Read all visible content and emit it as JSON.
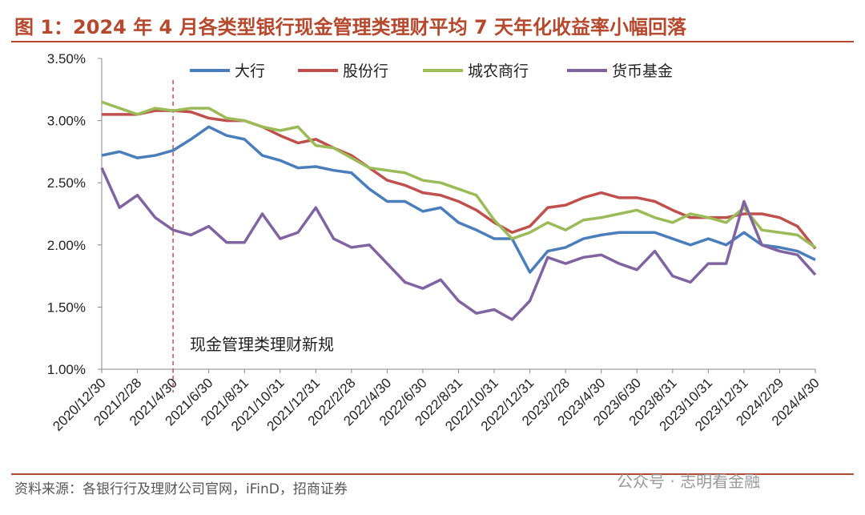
{
  "chart_data": {
    "type": "line",
    "title": "图 1：2024 年 4 月各类型银行现金管理类理财平均 7 天年化收益率小幅回落",
    "source": "资料来源：各银行行及理财公司官网，iFinD，招商证券",
    "watermark": "公众号 · 志明看金融",
    "annotation": {
      "text": "现金管理类理财新规",
      "x": "2021/4/30"
    },
    "categories": [
      "2020/12/30",
      "2021/1/31",
      "2021/2/28",
      "2021/3/31",
      "2021/4/30",
      "2021/5/31",
      "2021/6/30",
      "2021/7/31",
      "2021/8/31",
      "2021/9/30",
      "2021/10/31",
      "2021/11/30",
      "2021/12/31",
      "2022/1/31",
      "2022/2/28",
      "2022/3/31",
      "2022/4/30",
      "2022/5/31",
      "2022/6/30",
      "2022/7/31",
      "2022/8/31",
      "2022/9/30",
      "2022/10/31",
      "2022/11/30",
      "2022/12/31",
      "2023/1/31",
      "2023/2/28",
      "2023/3/31",
      "2023/4/30",
      "2023/5/31",
      "2023/6/30",
      "2023/7/31",
      "2023/8/31",
      "2023/9/30",
      "2023/10/31",
      "2023/11/30",
      "2023/12/31",
      "2024/1/31",
      "2024/2/29",
      "2024/3/31",
      "2024/4/30"
    ],
    "xtick_every": 2,
    "series": [
      {
        "name": "大行",
        "color": "#4a7ebb",
        "values": [
          2.72,
          2.75,
          2.7,
          2.72,
          2.76,
          2.85,
          2.95,
          2.88,
          2.85,
          2.72,
          2.68,
          2.62,
          2.63,
          2.6,
          2.58,
          2.45,
          2.35,
          2.35,
          2.27,
          2.3,
          2.18,
          2.12,
          2.05,
          2.05,
          1.78,
          1.95,
          1.98,
          2.05,
          2.08,
          2.1,
          2.1,
          2.1,
          2.05,
          2.0,
          2.05,
          2.0,
          2.1,
          2.0,
          1.98,
          1.95,
          1.88
        ]
      },
      {
        "name": "股份行",
        "color": "#c0504d",
        "values": [
          3.05,
          3.05,
          3.05,
          3.08,
          3.08,
          3.07,
          3.02,
          3.0,
          3.0,
          2.95,
          2.88,
          2.82,
          2.85,
          2.78,
          2.72,
          2.62,
          2.52,
          2.48,
          2.42,
          2.4,
          2.35,
          2.28,
          2.18,
          2.1,
          2.15,
          2.3,
          2.32,
          2.38,
          2.42,
          2.38,
          2.38,
          2.35,
          2.28,
          2.22,
          2.22,
          2.22,
          2.25,
          2.25,
          2.22,
          2.15,
          1.97
        ]
      },
      {
        "name": "城农商行",
        "color": "#9bbb59",
        "values": [
          3.15,
          3.1,
          3.05,
          3.1,
          3.08,
          3.1,
          3.1,
          3.02,
          3.0,
          2.95,
          2.92,
          2.95,
          2.8,
          2.78,
          2.7,
          2.62,
          2.6,
          2.58,
          2.52,
          2.5,
          2.45,
          2.4,
          2.2,
          2.05,
          2.1,
          2.18,
          2.12,
          2.2,
          2.22,
          2.25,
          2.28,
          2.22,
          2.18,
          2.25,
          2.22,
          2.18,
          2.3,
          2.12,
          2.1,
          2.08,
          1.98
        ]
      },
      {
        "name": "货币基金",
        "color": "#8064a2",
        "values": [
          2.62,
          2.3,
          2.4,
          2.22,
          2.12,
          2.08,
          2.15,
          2.02,
          2.02,
          2.25,
          2.05,
          2.1,
          2.3,
          2.05,
          1.98,
          2.0,
          1.85,
          1.7,
          1.65,
          1.72,
          1.55,
          1.45,
          1.48,
          1.4,
          1.55,
          1.9,
          1.85,
          1.9,
          1.92,
          1.85,
          1.8,
          1.95,
          1.75,
          1.7,
          1.85,
          1.85,
          2.35,
          2.0,
          1.95,
          1.92,
          1.76
        ]
      }
    ],
    "ylim": [
      1.0,
      3.5
    ],
    "yticks": [
      {
        "value": 1.0,
        "label": "1.00%"
      },
      {
        "value": 1.5,
        "label": "1.50%"
      },
      {
        "value": 2.0,
        "label": "2.00%"
      },
      {
        "value": 2.5,
        "label": "2.50%"
      },
      {
        "value": 3.0,
        "label": "3.00%"
      },
      {
        "value": 3.5,
        "label": "3.50%"
      }
    ],
    "grid": false
  }
}
